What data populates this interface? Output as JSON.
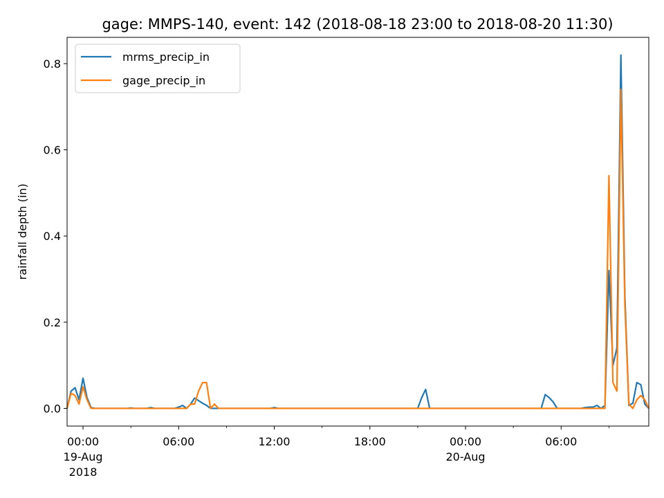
{
  "chart_data": {
    "type": "line",
    "title": "gage: MMPS-140, event: 142 (2018-08-18 23:00 to 2018-08-20 11:30)",
    "xlabel": "",
    "ylabel": "rainfall depth (in)",
    "xlim": [
      "2018-08-18 23:00",
      "2018-08-20 11:30"
    ],
    "ylim": [
      -0.041,
      0.861
    ],
    "grid": false,
    "legend_position": "upper left",
    "x_ticks": [
      {
        "at": "2018-08-19 00:00",
        "label": [
          "00:00",
          "19-Aug",
          "2018"
        ]
      },
      {
        "at": "2018-08-19 06:00",
        "label": [
          "06:00"
        ]
      },
      {
        "at": "2018-08-19 12:00",
        "label": [
          "12:00"
        ]
      },
      {
        "at": "2018-08-19 18:00",
        "label": [
          "18:00"
        ]
      },
      {
        "at": "2018-08-20 00:00",
        "label": [
          "00:00",
          "20-Aug"
        ]
      },
      {
        "at": "2018-08-20 06:00",
        "label": [
          "06:00"
        ]
      }
    ],
    "y_ticks": [
      {
        "value": 0.0,
        "label": "0.0"
      },
      {
        "value": 0.2,
        "label": "0.2"
      },
      {
        "value": 0.4,
        "label": "0.4"
      },
      {
        "value": 0.6,
        "label": "0.6"
      },
      {
        "value": 0.8,
        "label": "0.8"
      }
    ],
    "series": [
      {
        "name": "mrms_precip_in",
        "color": "#1f77b4",
        "points": [
          [
            "2018-08-18 23:00",
            0.0
          ],
          [
            "2018-08-18 23:15",
            0.04
          ],
          [
            "2018-08-18 23:30",
            0.048
          ],
          [
            "2018-08-18 23:45",
            0.02
          ],
          [
            "2018-08-19 00:00",
            0.07
          ],
          [
            "2018-08-19 00:15",
            0.025
          ],
          [
            "2018-08-19 00:30",
            0.002
          ],
          [
            "2018-08-19 00:45",
            0.0
          ],
          [
            "2018-08-19 01:00",
            0.0
          ],
          [
            "2018-08-19 02:00",
            0.0
          ],
          [
            "2018-08-19 02:45",
            0.0
          ],
          [
            "2018-08-19 03:00",
            0.001
          ],
          [
            "2018-08-19 03:15",
            0.0
          ],
          [
            "2018-08-19 04:00",
            0.0
          ],
          [
            "2018-08-19 04:15",
            0.002
          ],
          [
            "2018-08-19 04:30",
            0.0
          ],
          [
            "2018-08-19 05:00",
            0.0
          ],
          [
            "2018-08-19 05:45",
            0.0
          ],
          [
            "2018-08-19 06:00",
            0.003
          ],
          [
            "2018-08-19 06:15",
            0.007
          ],
          [
            "2018-08-19 06:30",
            0.0
          ],
          [
            "2018-08-19 06:45",
            0.01
          ],
          [
            "2018-08-19 07:00",
            0.024
          ],
          [
            "2018-08-19 07:15",
            0.018
          ],
          [
            "2018-08-19 07:30",
            0.012
          ],
          [
            "2018-08-19 07:45",
            0.007
          ],
          [
            "2018-08-19 08:00",
            0.0
          ],
          [
            "2018-08-19 08:15",
            0.0
          ],
          [
            "2018-08-19 09:00",
            0.0
          ],
          [
            "2018-08-19 11:45",
            0.0
          ],
          [
            "2018-08-19 12:00",
            0.002
          ],
          [
            "2018-08-19 12:15",
            0.0
          ],
          [
            "2018-08-19 18:00",
            0.0
          ],
          [
            "2018-08-19 21:00",
            0.0
          ],
          [
            "2018-08-19 21:15",
            0.025
          ],
          [
            "2018-08-19 21:30",
            0.044
          ],
          [
            "2018-08-19 21:45",
            0.0
          ],
          [
            "2018-08-20 00:00",
            0.0
          ],
          [
            "2018-08-20 04:45",
            0.0
          ],
          [
            "2018-08-20 05:00",
            0.032
          ],
          [
            "2018-08-20 05:15",
            0.025
          ],
          [
            "2018-08-20 05:30",
            0.015
          ],
          [
            "2018-08-20 05:45",
            0.0
          ],
          [
            "2018-08-20 07:15",
            0.0
          ],
          [
            "2018-08-20 07:30",
            0.002
          ],
          [
            "2018-08-20 07:45",
            0.003
          ],
          [
            "2018-08-20 08:00",
            0.003
          ],
          [
            "2018-08-20 08:15",
            0.007
          ],
          [
            "2018-08-20 08:30",
            0.0
          ],
          [
            "2018-08-20 08:45",
            0.007
          ],
          [
            "2018-08-20 09:00",
            0.32
          ],
          [
            "2018-08-20 09:15",
            0.1
          ],
          [
            "2018-08-20 09:30",
            0.14
          ],
          [
            "2018-08-20 09:45",
            0.82
          ],
          [
            "2018-08-20 10:00",
            0.26
          ],
          [
            "2018-08-20 10:15",
            0.007
          ],
          [
            "2018-08-20 10:30",
            0.012
          ],
          [
            "2018-08-20 10:45",
            0.06
          ],
          [
            "2018-08-20 11:00",
            0.055
          ],
          [
            "2018-08-20 11:15",
            0.01
          ],
          [
            "2018-08-20 11:30",
            0.0
          ]
        ]
      },
      {
        "name": "gage_precip_in",
        "color": "#ff7f0e",
        "points": [
          [
            "2018-08-18 23:00",
            0.0
          ],
          [
            "2018-08-18 23:15",
            0.035
          ],
          [
            "2018-08-18 23:30",
            0.03
          ],
          [
            "2018-08-18 23:45",
            0.01
          ],
          [
            "2018-08-19 00:00",
            0.05
          ],
          [
            "2018-08-19 00:15",
            0.02
          ],
          [
            "2018-08-19 00:30",
            0.0
          ],
          [
            "2018-08-19 01:00",
            0.0
          ],
          [
            "2018-08-19 06:00",
            0.0
          ],
          [
            "2018-08-19 06:30",
            0.0
          ],
          [
            "2018-08-19 06:45",
            0.01
          ],
          [
            "2018-08-19 07:00",
            0.01
          ],
          [
            "2018-08-19 07:15",
            0.04
          ],
          [
            "2018-08-19 07:30",
            0.06
          ],
          [
            "2018-08-19 07:45",
            0.06
          ],
          [
            "2018-08-19 08:00",
            0.0
          ],
          [
            "2018-08-19 08:15",
            0.01
          ],
          [
            "2018-08-19 08:30",
            0.0
          ],
          [
            "2018-08-19 09:00",
            0.0
          ],
          [
            "2018-08-20 08:00",
            0.0
          ],
          [
            "2018-08-20 08:45",
            0.0
          ],
          [
            "2018-08-20 09:00",
            0.54
          ],
          [
            "2018-08-20 09:15",
            0.06
          ],
          [
            "2018-08-20 09:30",
            0.04
          ],
          [
            "2018-08-20 09:45",
            0.74
          ],
          [
            "2018-08-20 10:00",
            0.24
          ],
          [
            "2018-08-20 10:15",
            0.01
          ],
          [
            "2018-08-20 10:30",
            0.0
          ],
          [
            "2018-08-20 10:45",
            0.02
          ],
          [
            "2018-08-20 11:00",
            0.03
          ],
          [
            "2018-08-20 11:15",
            0.02
          ],
          [
            "2018-08-20 11:30",
            0.0
          ]
        ]
      }
    ]
  }
}
